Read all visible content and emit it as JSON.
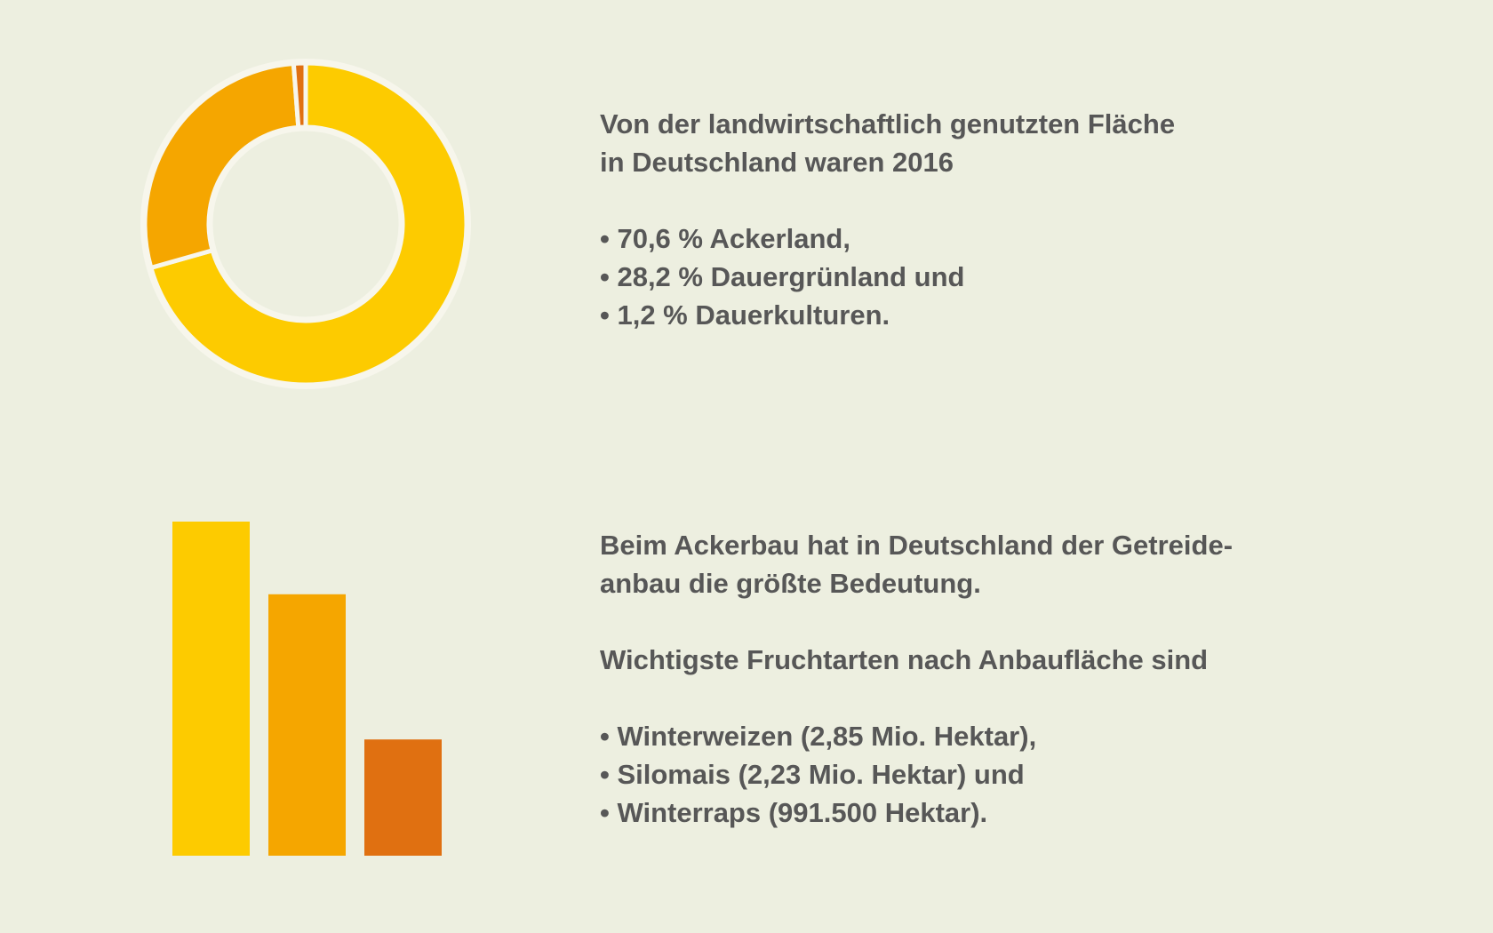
{
  "colors": {
    "background": "#edefe0",
    "yellow": "#fdcb00",
    "orange": "#f5a600",
    "dark_orange": "#e07011",
    "separator": "#f7f6ec",
    "text": "#575757"
  },
  "chart_data": [
    {
      "type": "pie",
      "variant": "donut",
      "categories": [
        "Ackerland",
        "Dauergrünland",
        "Dauerkulturen"
      ],
      "values": [
        70.6,
        28.2,
        1.2
      ],
      "unit": "%",
      "colors": [
        "#fdcb00",
        "#f5a600",
        "#e07011"
      ]
    },
    {
      "type": "bar",
      "categories": [
        "Winterweizen",
        "Silomais",
        "Winterraps"
      ],
      "values": [
        2.85,
        2.23,
        0.9915
      ],
      "unit": "Mio. Hektar",
      "colors": [
        "#fdcb00",
        "#f5a600",
        "#e07011"
      ],
      "ylim": [
        0,
        2.85
      ]
    }
  ],
  "text": {
    "block1": {
      "intro_line1": "Von der landwirtschaftlich genutzten Fläche",
      "intro_line2": "in Deutschland waren 2016",
      "items": [
        "• 70,6 % Ackerland,",
        "• 28,2 % Dauergrünland und",
        "• 1,2 % Dauerkulturen."
      ]
    },
    "block2": {
      "intro_line1": "Beim Ackerbau hat in Deutschland der Getreide-",
      "intro_line2": "anbau die größte Bedeutung.",
      "subhead": "Wichtigste Fruchtarten nach Anbaufläche sind",
      "items": [
        "• Winterweizen (2,85 Mio. Hektar),",
        "• Silomais (2,23 Mio. Hektar) und",
        "• Winterraps (991.500 Hektar)."
      ]
    }
  }
}
